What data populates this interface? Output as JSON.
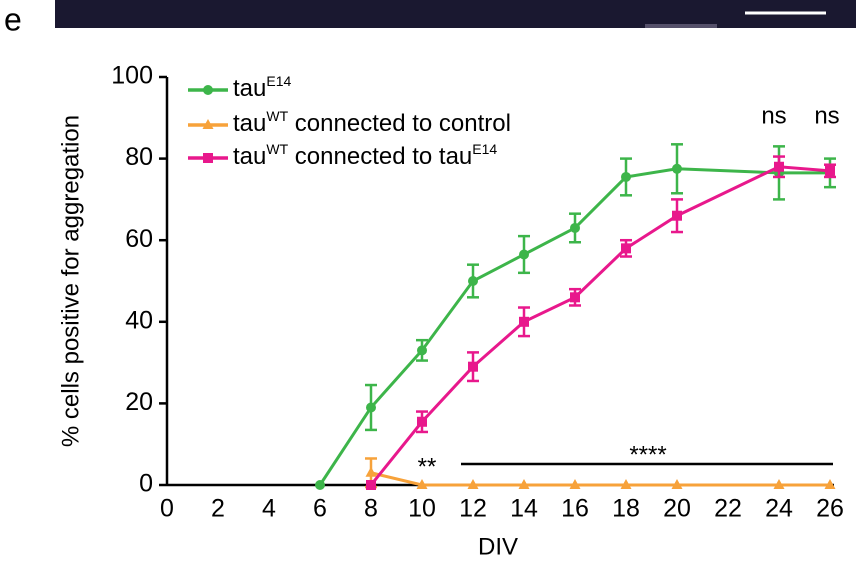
{
  "panel_label": "e",
  "chart_data": {
    "type": "line",
    "xlabel": "DIV",
    "ylabel": "% cells positive for aggregation",
    "xlim": [
      0,
      26
    ],
    "xticks": [
      0,
      2,
      4,
      6,
      8,
      10,
      12,
      14,
      16,
      18,
      20,
      22,
      24,
      26
    ],
    "ylim": [
      0,
      100
    ],
    "yticks": [
      0,
      20,
      40,
      60,
      80,
      100
    ],
    "legend": "upper left",
    "series": [
      {
        "name": [
          {
            "text": "tau"
          },
          {
            "text": "E14",
            "sup": true
          }
        ],
        "color": "#3db54a",
        "marker": "circle",
        "x": [
          6,
          8,
          10,
          12,
          14,
          16,
          18,
          20,
          24,
          26
        ],
        "values": [
          0,
          19,
          33,
          50,
          56.5,
          63,
          75.5,
          77.5,
          76.5,
          76.5
        ],
        "errors": [
          0,
          5.5,
          2.5,
          4,
          4.5,
          3.5,
          4.5,
          6,
          6.5,
          3.5
        ]
      },
      {
        "name": [
          {
            "text": "tau"
          },
          {
            "text": "WT",
            "sup": true
          },
          {
            "text": " connected to control"
          }
        ],
        "color": "#f7a23a",
        "marker": "triangle",
        "x": [
          8,
          10,
          12,
          14,
          16,
          18,
          20,
          24,
          26
        ],
        "values": [
          3,
          0,
          0,
          0,
          0,
          0,
          0,
          0,
          0
        ],
        "errors": [
          3.5,
          0,
          0,
          0,
          0,
          0,
          0,
          0,
          0
        ]
      },
      {
        "name": [
          {
            "text": "tau"
          },
          {
            "text": "WT",
            "sup": true
          },
          {
            "text": " connected to tau"
          },
          {
            "text": "E14",
            "sup": true
          }
        ],
        "color": "#e8188c",
        "marker": "square",
        "x": [
          8,
          10,
          12,
          14,
          16,
          18,
          20,
          24,
          26
        ],
        "values": [
          0,
          15.5,
          29,
          40,
          46,
          58,
          66,
          78,
          77
        ],
        "errors": [
          0,
          2.5,
          3.5,
          3.5,
          2,
          2,
          4,
          2.5,
          1.5
        ]
      }
    ],
    "annotations": [
      "**",
      "****",
      "ns",
      "ns"
    ]
  }
}
